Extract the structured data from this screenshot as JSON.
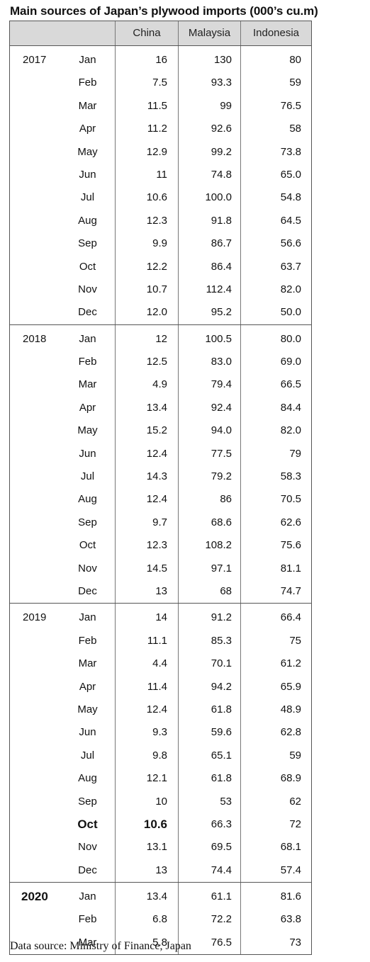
{
  "title": "Main sources of Japan’s plywood imports (000’s cu.m)",
  "columns": [
    "China",
    "Malaysia",
    "Indonesia"
  ],
  "years": [
    {
      "year": "2017",
      "rows": [
        {
          "month": "Jan",
          "china": "16",
          "malaysia": "130",
          "indonesia": "80"
        },
        {
          "month": "Feb",
          "china": "7.5",
          "malaysia": "93.3",
          "indonesia": "59"
        },
        {
          "month": "Mar",
          "china": "11.5",
          "malaysia": "99",
          "indonesia": "76.5"
        },
        {
          "month": "Apr",
          "china": "11.2",
          "malaysia": "92.6",
          "indonesia": "58"
        },
        {
          "month": "May",
          "china": "12.9",
          "malaysia": "99.2",
          "indonesia": "73.8"
        },
        {
          "month": "Jun",
          "china": "11",
          "malaysia": "74.8",
          "indonesia": "65.0"
        },
        {
          "month": "Jul",
          "china": "10.6",
          "malaysia": "100.0",
          "indonesia": "54.8"
        },
        {
          "month": "Aug",
          "china": "12.3",
          "malaysia": "91.8",
          "indonesia": "64.5"
        },
        {
          "month": "Sep",
          "china": "9.9",
          "malaysia": "86.7",
          "indonesia": "56.6"
        },
        {
          "month": "Oct",
          "china": "12.2",
          "malaysia": "86.4",
          "indonesia": "63.7"
        },
        {
          "month": "Nov",
          "china": "10.7",
          "malaysia": "112.4",
          "indonesia": "82.0"
        },
        {
          "month": "Dec",
          "china": "12.0",
          "malaysia": "95.2",
          "indonesia": "50.0"
        }
      ]
    },
    {
      "year": "2018",
      "rows": [
        {
          "month": "Jan",
          "china": "12",
          "malaysia": "100.5",
          "indonesia": "80.0"
        },
        {
          "month": "Feb",
          "china": "12.5",
          "malaysia": "83.0",
          "indonesia": "69.0"
        },
        {
          "month": "Mar",
          "china": "4.9",
          "malaysia": "79.4",
          "indonesia": "66.5"
        },
        {
          "month": "Apr",
          "china": "13.4",
          "malaysia": "92.4",
          "indonesia": "84.4"
        },
        {
          "month": "May",
          "china": "15.2",
          "malaysia": "94.0",
          "indonesia": "82.0"
        },
        {
          "month": "Jun",
          "china": "12.4",
          "malaysia": "77.5",
          "indonesia": "79"
        },
        {
          "month": "Jul",
          "china": "14.3",
          "malaysia": "79.2",
          "indonesia": "58.3"
        },
        {
          "month": "Aug",
          "china": "12.4",
          "malaysia": "86",
          "indonesia": "70.5"
        },
        {
          "month": "Sep",
          "china": "9.7",
          "malaysia": "68.6",
          "indonesia": "62.6"
        },
        {
          "month": "Oct",
          "china": "12.3",
          "malaysia": "108.2",
          "indonesia": "75.6"
        },
        {
          "month": "Nov",
          "china": "14.5",
          "malaysia": "97.1",
          "indonesia": "81.1"
        },
        {
          "month": "Dec",
          "china": "13",
          "malaysia": "68",
          "indonesia": "74.7"
        }
      ]
    },
    {
      "year": "2019",
      "rows": [
        {
          "month": "Jan",
          "china": "14",
          "malaysia": "91.2",
          "indonesia": "66.4"
        },
        {
          "month": "Feb",
          "china": "11.1",
          "malaysia": "85.3",
          "indonesia": "75"
        },
        {
          "month": "Mar",
          "china": "4.4",
          "malaysia": "70.1",
          "indonesia": "61.2"
        },
        {
          "month": "Apr",
          "china": "11.4",
          "malaysia": "94.2",
          "indonesia": "65.9"
        },
        {
          "month": "May",
          "china": "12.4",
          "malaysia": "61.8",
          "indonesia": "48.9"
        },
        {
          "month": "Jun",
          "china": "9.3",
          "malaysia": "59.6",
          "indonesia": "62.8"
        },
        {
          "month": "Jul",
          "china": "9.8",
          "malaysia": "65.1",
          "indonesia": "59"
        },
        {
          "month": "Aug",
          "china": "12.1",
          "malaysia": "61.8",
          "indonesia": "68.9"
        },
        {
          "month": "Sep",
          "china": "10",
          "malaysia": "53",
          "indonesia": "62"
        },
        {
          "month": "Oct",
          "china": "10.6",
          "malaysia": "66.3",
          "indonesia": "72",
          "bold": true
        },
        {
          "month": "Nov",
          "china": "13.1",
          "malaysia": "69.5",
          "indonesia": "68.1"
        },
        {
          "month": "Dec",
          "china": "13",
          "malaysia": "74.4",
          "indonesia": "57.4"
        }
      ]
    },
    {
      "year": "2020",
      "bold_year": true,
      "rows": [
        {
          "month": "Jan",
          "china": "13.4",
          "malaysia": "61.1",
          "indonesia": "81.6"
        },
        {
          "month": "Feb",
          "china": "6.8",
          "malaysia": "72.2",
          "indonesia": "63.8"
        },
        {
          "month": "Mar",
          "china": "5.8",
          "malaysia": "76.5",
          "indonesia": "73"
        }
      ]
    }
  ],
  "source": "Data source: Ministry of Finance, Japan"
}
